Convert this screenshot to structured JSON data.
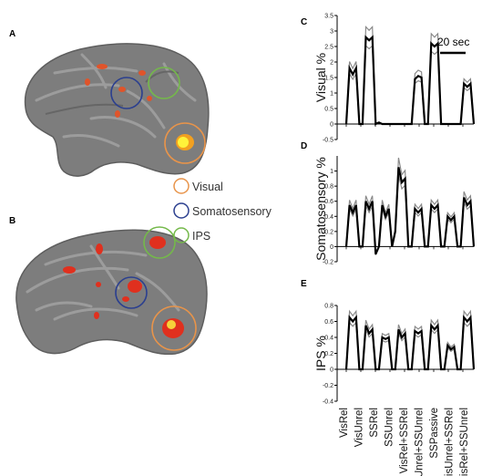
{
  "panel_labels": [
    "A",
    "B",
    "C",
    "D",
    "E"
  ],
  "legend": [
    {
      "label": "Visual",
      "color": "#e8944a"
    },
    {
      "label": "Somatosensory",
      "color": "#2b3f8f"
    },
    {
      "label": "IPS",
      "color": "#74b94a"
    }
  ],
  "scale_bar_label": "20 sec",
  "conditions": [
    "VisRel",
    "VisUnrel",
    "SSRel",
    "SSUnrel",
    "VisRel+SSRel",
    "VisUnrel+SSUnrel",
    "SSPassive",
    "VisUnrel+SSRel",
    "VisRel+SSUnrel"
  ],
  "colors": {
    "mean": "#000000",
    "error": "#8a8a8a",
    "brain": "#7d7d7d",
    "activation": "#e0301e"
  },
  "chart_data": [
    {
      "type": "line",
      "panel": "C",
      "ylabel": "Visual %",
      "ylim": [
        -0.5,
        3.5
      ],
      "yticks": [
        "-0.5",
        "0",
        "0.5",
        "1",
        "1.5",
        "2",
        "2.5",
        "3",
        "3.5"
      ],
      "series": [
        {
          "values": [
            0,
            1.8,
            1.6,
            1.8,
            0,
            0,
            2.8,
            2.7,
            2.8,
            0,
            0.05,
            0,
            0,
            0,
            0,
            0,
            0,
            0,
            0,
            0,
            0,
            1.45,
            1.55,
            1.5,
            0,
            0,
            2.6,
            2.5,
            2.6,
            0,
            0,
            0,
            0,
            0,
            0,
            0,
            1.3,
            1.2,
            1.3,
            0
          ]
        }
      ]
    },
    {
      "type": "line",
      "panel": "D",
      "ylabel": "Somatosensory %",
      "ylim": [
        -0.2,
        1.2
      ],
      "yticks": [
        "-0.2",
        "0",
        "0.2",
        "0.4",
        "0.6",
        "0.8",
        "1"
      ],
      "series": [
        {
          "values": [
            0,
            0.55,
            0.45,
            0.55,
            0,
            0,
            0.6,
            0.5,
            0.6,
            -0.1,
            0,
            0.55,
            0.4,
            0.5,
            0,
            0.2,
            1.05,
            0.85,
            0.9,
            0,
            0,
            0.5,
            0.45,
            0.5,
            0,
            0,
            0.55,
            0.5,
            0.55,
            0,
            0,
            0.4,
            0.35,
            0.4,
            0,
            0,
            0.65,
            0.55,
            0.6,
            0
          ]
        }
      ]
    },
    {
      "type": "line",
      "panel": "E",
      "ylabel": "IPS %",
      "ylim": [
        -0.4,
        0.8
      ],
      "yticks": [
        "-0.4",
        "-0.2",
        "0",
        "0.2",
        "0.4",
        "0.6",
        "0.8"
      ],
      "series": [
        {
          "values": [
            0,
            0.65,
            0.6,
            0.65,
            0,
            0,
            0.55,
            0.45,
            0.5,
            0,
            0,
            0.4,
            0.38,
            0.4,
            0,
            0,
            0.5,
            0.4,
            0.45,
            0,
            0,
            0.48,
            0.45,
            0.48,
            0,
            0,
            0.55,
            0.5,
            0.55,
            0,
            0,
            0.3,
            0.25,
            0.28,
            0,
            0,
            0.65,
            0.6,
            0.65,
            0
          ]
        }
      ]
    }
  ]
}
